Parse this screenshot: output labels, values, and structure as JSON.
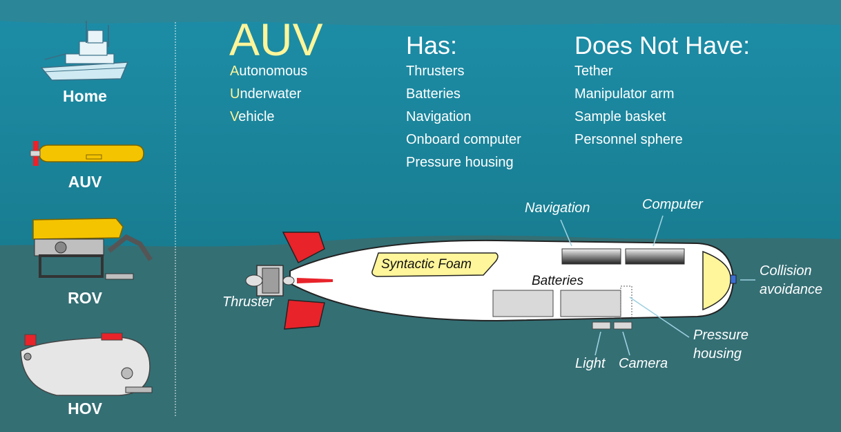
{
  "sidebar": {
    "items": [
      {
        "label": "Home",
        "icon": "ship-icon"
      },
      {
        "label": "AUV",
        "icon": "auv-icon"
      },
      {
        "label": "ROV",
        "icon": "rov-icon"
      },
      {
        "label": "HOV",
        "icon": "hov-icon"
      }
    ]
  },
  "header": {
    "title": "AUV",
    "acronym": [
      {
        "first": "A",
        "rest": "utonomous"
      },
      {
        "first": "U",
        "rest": "nderwater"
      },
      {
        "first": "V",
        "rest": "ehicle"
      }
    ]
  },
  "has": {
    "heading": "Has:",
    "items": [
      "Thrusters",
      "Batteries",
      "Navigation",
      "Onboard computer",
      "Pressure housing"
    ]
  },
  "not_have": {
    "heading": "Does Not Have:",
    "items": [
      "Tether",
      "Manipulator arm",
      "Sample basket",
      "Personnel sphere"
    ]
  },
  "diagram": {
    "labels": {
      "navigation": "Navigation",
      "computer": "Computer",
      "collision_1": "Collision",
      "collision_2": "avoidance",
      "syntactic_foam": "Syntactic Foam",
      "batteries": "Batteries",
      "thruster": "Thruster",
      "pressure_1": "Pressure",
      "pressure_2": "housing",
      "light": "Light",
      "camera": "Camera"
    }
  },
  "colors": {
    "accent_yellow": "#fff59a",
    "water_top": "#1a8ca6",
    "seafloor": "#2f6f77",
    "fin_red": "#e8232a"
  }
}
